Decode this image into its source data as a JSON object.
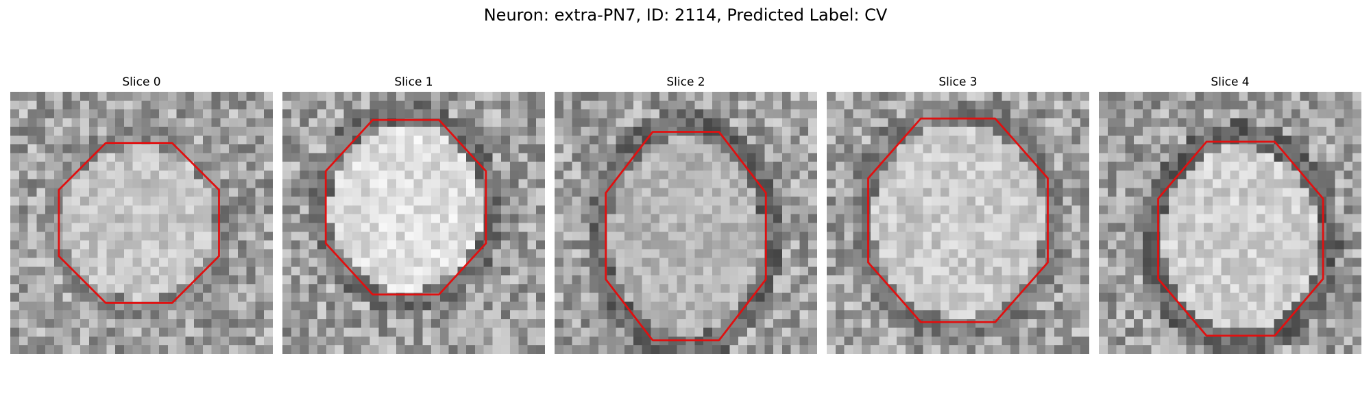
{
  "title": "Neuron: extra-PN7, ID: 2114, Predicted Label: CV",
  "contour_color": "#e01010",
  "slices": [
    {
      "label": "Slice 0",
      "center": [
        0.49,
        0.5
      ],
      "radius": [
        0.33,
        0.33
      ],
      "interior_brightness": 0.78,
      "ring_darkness": 0.38,
      "seed": 11
    },
    {
      "label": "Slice 1",
      "center": [
        0.47,
        0.44
      ],
      "radius": [
        0.33,
        0.36
      ],
      "interior_brightness": 0.88,
      "ring_darkness": 0.55,
      "seed": 23
    },
    {
      "label": "Slice 2",
      "center": [
        0.5,
        0.55
      ],
      "radius": [
        0.33,
        0.43
      ],
      "interior_brightness": 0.72,
      "ring_darkness": 0.6,
      "seed": 37
    },
    {
      "label": "Slice 3",
      "center": [
        0.5,
        0.49
      ],
      "radius": [
        0.37,
        0.42
      ],
      "interior_brightness": 0.8,
      "ring_darkness": 0.45,
      "seed": 41
    },
    {
      "label": "Slice 4",
      "center": [
        0.54,
        0.56
      ],
      "radius": [
        0.34,
        0.4
      ],
      "interior_brightness": 0.82,
      "ring_darkness": 0.62,
      "seed": 53
    }
  ]
}
